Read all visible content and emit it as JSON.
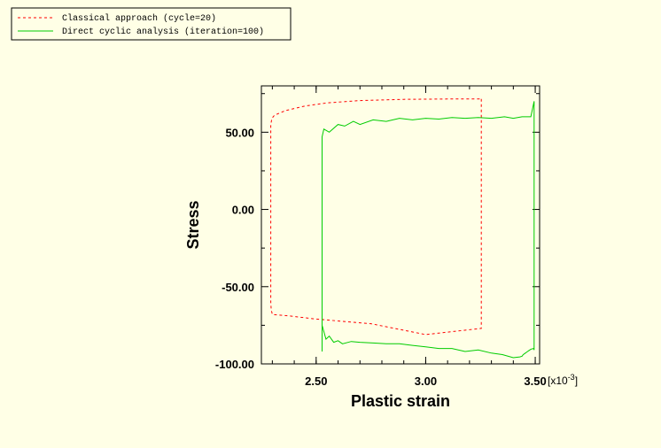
{
  "chart_data": {
    "type": "line",
    "title": "",
    "xlabel": "Plastic strain",
    "ylabel": "Stress",
    "x_multiplier_label": "[x10",
    "x_multiplier_exp": "-3",
    "x_multiplier_close": "]",
    "xlim": [
      2.25,
      3.52
    ],
    "ylim": [
      -100,
      80
    ],
    "x_ticks": [
      {
        "value": 2.5,
        "label": "2.50"
      },
      {
        "value": 3.0,
        "label": "3.00"
      },
      {
        "value": 3.5,
        "label": "3.50"
      }
    ],
    "y_ticks": [
      {
        "value": 50,
        "label": "50.00"
      },
      {
        "value": 0,
        "label": "0.00"
      },
      {
        "value": -50,
        "label": "-50.00"
      },
      {
        "value": -100,
        "label": "-100.00"
      }
    ],
    "legend_position": "top-left",
    "series": [
      {
        "name": "Classical approach (cycle=20)",
        "color": "#ff0000",
        "style": "dashed",
        "x": [
          3.254,
          3.254,
          3.0,
          2.75,
          2.5,
          2.38,
          2.3,
          2.295,
          2.293,
          2.293,
          2.298,
          2.31,
          2.36,
          2.45,
          2.55,
          2.7,
          2.9,
          3.1,
          3.254
        ],
        "y": [
          71.5,
          -77,
          -81,
          -74,
          -71,
          -69,
          -68,
          -65,
          -60,
          55,
          59,
          61,
          64,
          67,
          69,
          70.5,
          71.3,
          71.5,
          71.5
        ]
      },
      {
        "name": "Direct cyclic analysis (iteration=100)",
        "color": "#00cc00",
        "style": "solid",
        "x": [
          2.527,
          2.527,
          2.535,
          2.56,
          2.6,
          2.63,
          2.67,
          2.7,
          2.76,
          2.82,
          2.88,
          2.94,
          3.0,
          3.06,
          3.12,
          3.18,
          3.24,
          3.3,
          3.36,
          3.4,
          3.44,
          3.48,
          3.495,
          3.495,
          3.492,
          3.48,
          3.475,
          3.47,
          3.465,
          3.46,
          3.455,
          3.45,
          3.445,
          3.44,
          3.43,
          3.4,
          3.35,
          3.3,
          3.24,
          3.18,
          3.12,
          3.06,
          3.0,
          2.94,
          2.88,
          2.82,
          2.76,
          2.7,
          2.66,
          2.62,
          2.6,
          2.58,
          2.56,
          2.545,
          2.527
        ],
        "y": [
          -92,
          47,
          52,
          50,
          55,
          54,
          57,
          55,
          58,
          57,
          59,
          58,
          59,
          58.5,
          59.5,
          59,
          59.5,
          59,
          60,
          59,
          60,
          60,
          70,
          -91,
          -90,
          -90.5,
          -91,
          -91.5,
          -92,
          -92.5,
          -93,
          -93.5,
          -94,
          -95,
          -95.5,
          -96,
          -94,
          -93,
          -91,
          -92,
          -90,
          -90,
          -89,
          -88,
          -87,
          -87,
          -86.5,
          -86,
          -85.5,
          -87,
          -85,
          -86,
          -82,
          -84,
          -75
        ]
      }
    ]
  }
}
